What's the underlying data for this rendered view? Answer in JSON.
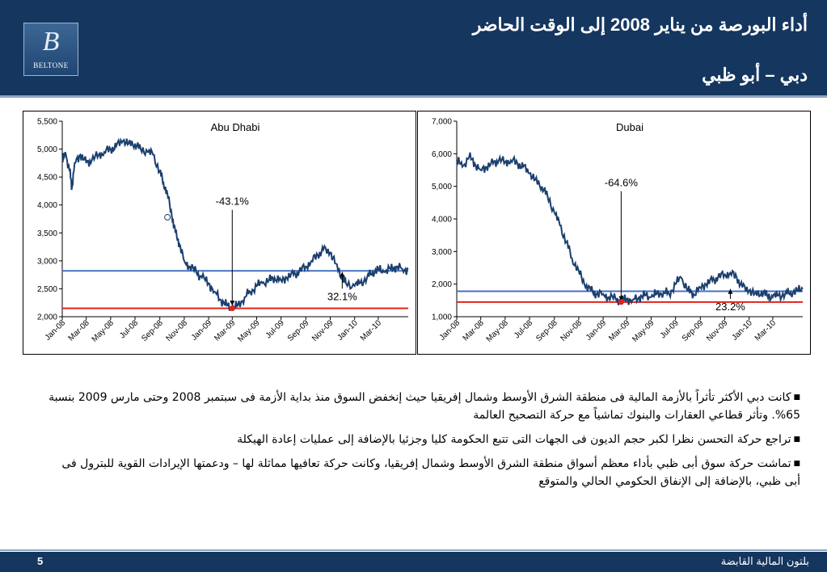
{
  "header": {
    "title": "أداء البورصة من يناير 2008 إلى الوقت الحاضر",
    "subtitle": "دبي – أبو ظبي",
    "logo_text": "BELTONE",
    "logo_letter": "B"
  },
  "colors": {
    "navy": "#14365f",
    "series": "#1b3f6e",
    "blue_line": "#4472c4",
    "red_line": "#e0231b"
  },
  "chart_data": [
    {
      "type": "line",
      "title": "Abu Dhabi",
      "xlabel": "",
      "ylabel": "",
      "ylim": [
        2000,
        5500
      ],
      "yticks": [
        2000,
        2500,
        3000,
        3500,
        4000,
        4500,
        5000,
        5500
      ],
      "ytick_labels": [
        "2,000",
        "2,500",
        "3,000",
        "3,500",
        "4,000",
        "4,500",
        "5,000",
        "5,500"
      ],
      "xtick_labels": [
        "Jan-08",
        "Mar-08",
        "May-08",
        "Jul-08",
        "Sep-08",
        "Nov-08",
        "Jan-09",
        "Mar-09",
        "May-09",
        "Jul-09",
        "Sep-09",
        "Nov-09",
        "Jan-10",
        "Mar-10"
      ],
      "xlim": [
        "2008-01-01",
        "2010-05-15"
      ],
      "series": [
        {
          "x": [
            "2008-01-01",
            "2008-01-10",
            "2008-01-20",
            "2008-01-25",
            "2008-02-01",
            "2008-02-15",
            "2008-03-01",
            "2008-03-15",
            "2008-04-01",
            "2008-04-15",
            "2008-05-01",
            "2008-05-15",
            "2008-06-01",
            "2008-06-15",
            "2008-07-01",
            "2008-07-15",
            "2008-08-01",
            "2008-08-15",
            "2008-09-01",
            "2008-09-10",
            "2008-09-20",
            "2008-10-01",
            "2008-10-10",
            "2008-10-20",
            "2008-11-01",
            "2008-11-15",
            "2008-12-01",
            "2008-12-15",
            "2009-01-01",
            "2009-01-15",
            "2009-02-01",
            "2009-02-15",
            "2009-03-01",
            "2009-03-15",
            "2009-04-01",
            "2009-04-15",
            "2009-05-01",
            "2009-05-15",
            "2009-06-01",
            "2009-06-15",
            "2009-07-01",
            "2009-07-15",
            "2009-08-01",
            "2009-08-15",
            "2009-09-01",
            "2009-09-15",
            "2009-10-01",
            "2009-10-15",
            "2009-11-01",
            "2009-11-15",
            "2009-12-01",
            "2009-12-10",
            "2010-01-01",
            "2010-01-15",
            "2010-02-01",
            "2010-02-15",
            "2010-03-01",
            "2010-03-15",
            "2010-04-01",
            "2010-04-15",
            "2010-05-01",
            "2010-05-15"
          ],
          "y": [
            4800,
            4900,
            4600,
            4300,
            4750,
            4900,
            4750,
            4800,
            4900,
            4950,
            5000,
            5050,
            5150,
            5100,
            5100,
            5000,
            4950,
            4900,
            4600,
            4400,
            4200,
            3800,
            3500,
            3300,
            3000,
            2900,
            2800,
            2700,
            2600,
            2450,
            2300,
            2200,
            2150,
            2200,
            2350,
            2450,
            2550,
            2600,
            2650,
            2700,
            2650,
            2700,
            2750,
            2800,
            2900,
            3000,
            3100,
            3200,
            3150,
            2950,
            2700,
            2600,
            2550,
            2600,
            2700,
            2800,
            2850,
            2800,
            2850,
            2900,
            2850,
            2850
          ]
        }
      ],
      "annotations": [
        {
          "text": "-43.1%",
          "at": [
            "2009-03-01",
            4000
          ],
          "arrow_to": [
            "2009-03-01",
            2200
          ]
        },
        {
          "text": "32.1%",
          "at": [
            "2009-12-01",
            2300
          ],
          "arrow_to": [
            "2009-12-01",
            2800
          ]
        }
      ],
      "hlines": [
        {
          "y": 2820,
          "color": "#4472c4"
        },
        {
          "y": 2150,
          "color": "#e0231b"
        }
      ],
      "markers": [
        {
          "x": "2008-09-20",
          "y": 3780,
          "style": "open-circle"
        },
        {
          "x": "2009-03-01",
          "y": 2150,
          "style": "red-dot"
        }
      ],
      "grid": false,
      "legend": "none"
    },
    {
      "type": "line",
      "title": "Dubai",
      "xlabel": "",
      "ylabel": "",
      "ylim": [
        1000,
        7000
      ],
      "yticks": [
        1000,
        2000,
        3000,
        4000,
        5000,
        6000,
        7000
      ],
      "ytick_labels": [
        "1,000",
        "2,000",
        "3,000",
        "4,000",
        "5,000",
        "6,000",
        "7,000"
      ],
      "xtick_labels": [
        "Jan-08",
        "Mar-08",
        "May-08",
        "Jul-08",
        "Sep-08",
        "Nov-08",
        "Jan-09",
        "Mar-09",
        "May-09",
        "Jul-09",
        "Sep-09",
        "Nov-09",
        "Jan-10",
        "Mar-10"
      ],
      "xlim": [
        "2008-01-01",
        "2010-05-15"
      ],
      "series": [
        {
          "x": [
            "2008-01-01",
            "2008-01-15",
            "2008-02-01",
            "2008-02-15",
            "2008-03-01",
            "2008-03-15",
            "2008-04-01",
            "2008-04-15",
            "2008-05-01",
            "2008-05-15",
            "2008-06-01",
            "2008-06-15",
            "2008-07-01",
            "2008-07-15",
            "2008-08-01",
            "2008-08-15",
            "2008-09-01",
            "2008-09-15",
            "2008-10-01",
            "2008-10-15",
            "2008-11-01",
            "2008-11-15",
            "2008-12-01",
            "2008-12-15",
            "2009-01-01",
            "2009-01-15",
            "2009-02-01",
            "2009-02-15",
            "2009-03-01",
            "2009-03-15",
            "2009-04-01",
            "2009-04-15",
            "2009-05-01",
            "2009-05-15",
            "2009-06-01",
            "2009-06-15",
            "2009-07-01",
            "2009-07-15",
            "2009-08-01",
            "2009-08-15",
            "2009-09-01",
            "2009-09-15",
            "2009-10-01",
            "2009-10-15",
            "2009-11-01",
            "2009-11-15",
            "2009-12-01",
            "2009-12-15",
            "2010-01-01",
            "2010-01-15",
            "2010-02-01",
            "2010-02-15",
            "2010-03-01",
            "2010-03-15",
            "2010-04-01",
            "2010-04-15",
            "2010-05-01",
            "2010-05-15"
          ],
          "y": [
            5800,
            5600,
            5900,
            5700,
            5500,
            5600,
            5700,
            5800,
            5750,
            5800,
            5700,
            5600,
            5400,
            5200,
            5000,
            4700,
            4200,
            3800,
            3300,
            2800,
            2400,
            2000,
            1800,
            1700,
            1700,
            1600,
            1550,
            1500,
            1550,
            1500,
            1600,
            1650,
            1600,
            1700,
            1750,
            1700,
            2000,
            2200,
            1800,
            1700,
            1900,
            2000,
            2100,
            2200,
            2300,
            2350,
            2200,
            1900,
            1800,
            1700,
            1750,
            1650,
            1600,
            1650,
            1700,
            1750,
            1800,
            1850
          ]
        }
      ],
      "annotations": [
        {
          "text": "-64.6%",
          "at": [
            "2009-02-15",
            5000
          ],
          "arrow_to": [
            "2009-02-15",
            1480
          ]
        },
        {
          "text": "23.2%",
          "at": [
            "2009-11-15",
            1200
          ],
          "arrow_to": [
            "2009-11-15",
            1850
          ]
        }
      ],
      "hlines": [
        {
          "y": 1780,
          "color": "#4472c4"
        },
        {
          "y": 1450,
          "color": "#e0231b"
        }
      ],
      "markers": [
        {
          "x": "2009-02-15",
          "y": 1450,
          "style": "red-dot"
        }
      ],
      "grid": false,
      "legend": "none"
    }
  ],
  "bullets": [
    "كانت دبي الأكثر تأثراً بالأزمة المالية فى منطقة الشرق الأوسط وشمال إفريقيا حيث إنخفض السوق منذ بداية الأزمة فى سبتمبر 2008 وحتى مارس 2009 بنسبة 65%. وتأثر قطاعي العقارات والبنوك تماشياً مع حركة التصحيح العالمة",
    "تراجع حركة التحسن نظرا لكبر حجم الديون فى الجهات التى تتبع الحكومة كليا وجزئيا بالإضافة إلى عمليات إعادة الهيكلة",
    "تماشت حركة سوق أبى ظبي بأداء معظم أسواق منطقة الشرق الأوسط وشمال إفريقيا، وكانت حركة تعافيها مماثلة لها – ودعمتها الإيرادات القوية للبترول فى أبى ظبي، بالإضافة إلى الإنفاق الحكومي الحالي والمتوقع"
  ],
  "footer": {
    "page_number": "5",
    "company": "بلتون المالية القابضة"
  }
}
